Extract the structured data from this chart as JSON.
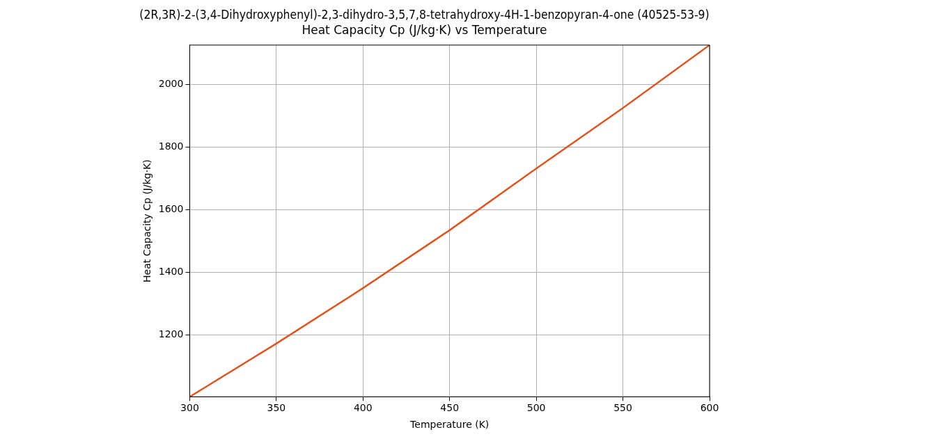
{
  "chart_data": {
    "type": "line",
    "title": "(2R,3R)-2-(3,4-Dihydroxyphenyl)-2,3-dihydro-3,5,7,8-tetrahydroxy-4H-1-benzopyran-4-one (40525-53-9)",
    "subtitle": "Heat Capacity Cp (J/kg·K) vs Temperature",
    "xlabel": "Temperature (K)",
    "ylabel": "Heat Capacity Cp (J/kg·K)",
    "x": [
      300,
      350,
      400,
      450,
      500,
      550,
      600
    ],
    "series": [
      {
        "color": "#dd5522",
        "values": [
          1003,
          1173,
          1350,
          1535,
          1732,
          1925,
          2126
        ]
      }
    ],
    "xlim": [
      300,
      600
    ],
    "xticks": [
      300,
      350,
      400,
      450,
      500,
      550,
      600
    ],
    "ylim": [
      1003,
      2126
    ],
    "yticks": [
      1200,
      1400,
      1600,
      1800,
      2000
    ],
    "grid": true,
    "legend": false,
    "marker": "none",
    "line_style": "solid"
  }
}
